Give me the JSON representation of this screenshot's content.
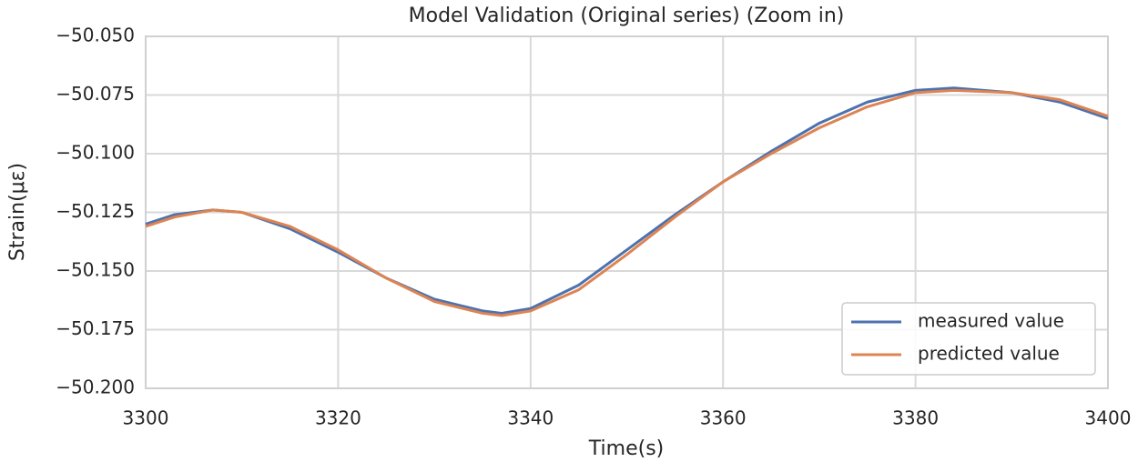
{
  "chart_data": {
    "type": "line",
    "title": "Model Validation (Original series) (Zoom in)",
    "x_label": "Time(s)",
    "y_label": "Strain(με)",
    "x": [
      3300,
      3303,
      3307,
      3310,
      3315,
      3320,
      3325,
      3330,
      3335,
      3337,
      3340,
      3345,
      3350,
      3355,
      3360,
      3365,
      3370,
      3375,
      3380,
      3384,
      3390,
      3395,
      3400
    ],
    "series": [
      {
        "name": "measured value",
        "color": "#4c72b0",
        "values": [
          -50.13,
          -50.126,
          -50.124,
          -50.125,
          -50.132,
          -50.142,
          -50.153,
          -50.162,
          -50.167,
          -50.168,
          -50.166,
          -50.156,
          -50.141,
          -50.126,
          -50.112,
          -50.099,
          -50.087,
          -50.078,
          -50.073,
          -50.072,
          -50.074,
          -50.078,
          -50.085
        ]
      },
      {
        "name": "predicted value",
        "color": "#dd8452",
        "values": [
          -50.131,
          -50.127,
          -50.124,
          -50.125,
          -50.131,
          -50.141,
          -50.153,
          -50.163,
          -50.168,
          -50.169,
          -50.167,
          -50.158,
          -50.143,
          -50.127,
          -50.112,
          -50.1,
          -50.089,
          -50.08,
          -50.074,
          -50.073,
          -50.074,
          -50.077,
          -50.084
        ]
      }
    ],
    "xlim": [
      3300,
      3400
    ],
    "xticks": [
      3300,
      3320,
      3340,
      3360,
      3380,
      3400
    ],
    "ylim": [
      -50.2,
      -50.05
    ],
    "yticks": [
      {
        "value": -50.2,
        "label": "−50.200"
      },
      {
        "value": -50.175,
        "label": "−50.175"
      },
      {
        "value": -50.15,
        "label": "−50.150"
      },
      {
        "value": -50.125,
        "label": "−50.125"
      },
      {
        "value": -50.1,
        "label": "−50.100"
      },
      {
        "value": -50.075,
        "label": "−50.075"
      },
      {
        "value": -50.05,
        "label": "−50.050"
      }
    ],
    "grid": true,
    "legend": "lower right"
  }
}
